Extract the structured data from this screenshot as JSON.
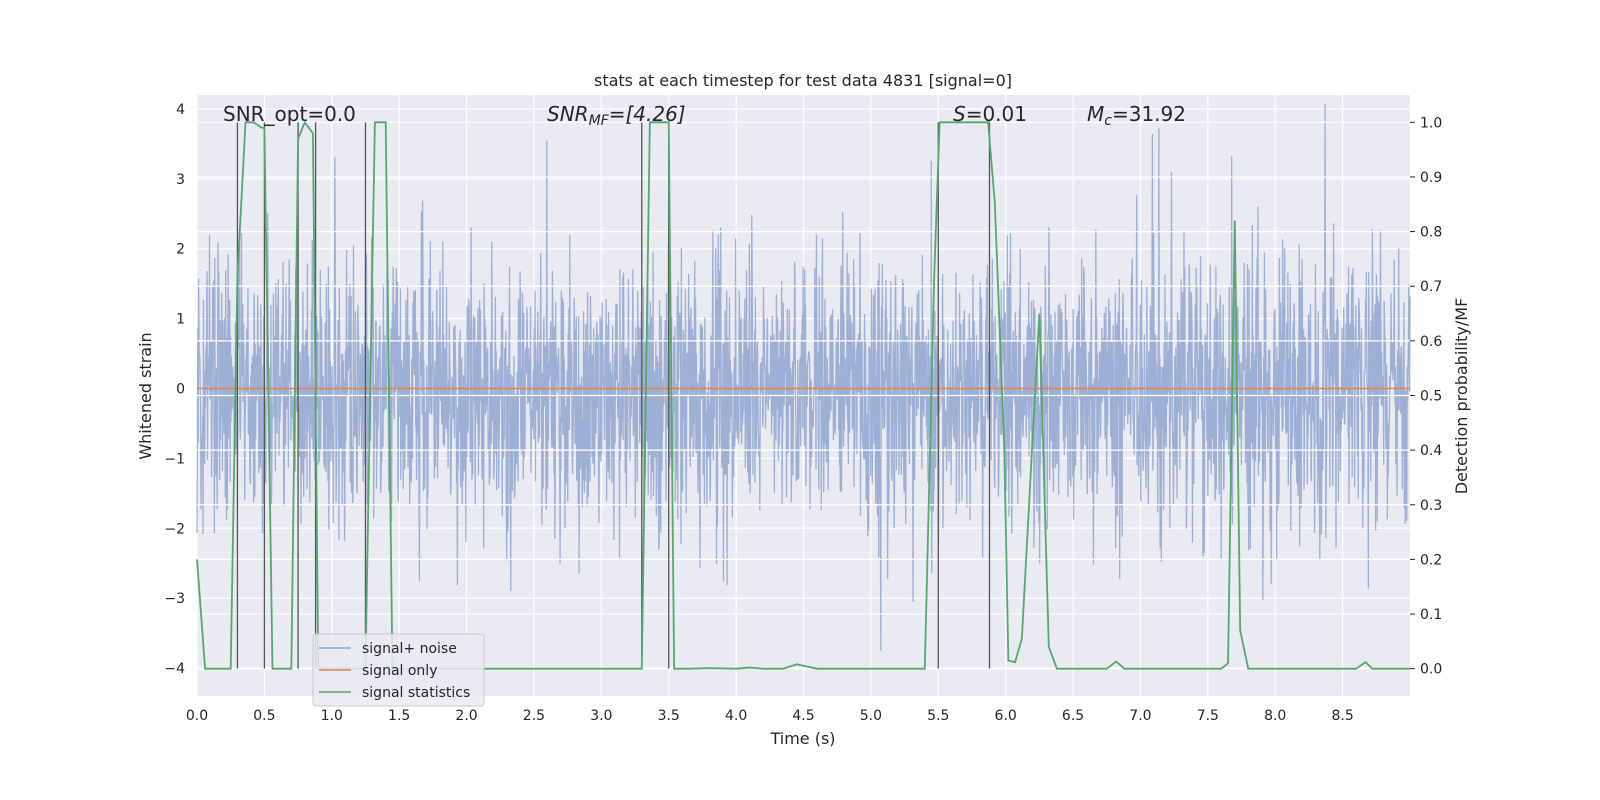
{
  "chart_data": {
    "type": "line",
    "title": "stats at each timestep for test data 4831 [signal=0]",
    "xlabel": "Time (s)",
    "ylabel_left": "Whitened strain",
    "ylabel_right": "Detection probability/MF",
    "xlim": [
      0.0,
      9.0
    ],
    "ylim_left": [
      -4.4,
      4.2
    ],
    "ylim_right": [
      -0.05,
      1.05
    ],
    "x_ticks": [
      0.0,
      0.5,
      1.0,
      1.5,
      2.0,
      2.5,
      3.0,
      3.5,
      4.0,
      4.5,
      5.0,
      5.5,
      6.0,
      6.5,
      7.0,
      7.5,
      8.0,
      8.5
    ],
    "x_tick_labels": [
      "0.0",
      "0.5",
      "1.0",
      "1.5",
      "2.0",
      "2.5",
      "3.0",
      "3.5",
      "4.0",
      "4.5",
      "5.0",
      "5.5",
      "6.0",
      "6.5",
      "7.0",
      "7.5",
      "8.0",
      "8.5"
    ],
    "y_ticks_left": [
      4,
      3,
      2,
      1,
      0,
      -1,
      -2,
      -3,
      -4
    ],
    "y_tick_labels_left": [
      "4",
      "3",
      "2",
      "1",
      "0",
      "−1",
      "−2",
      "−3",
      "−4"
    ],
    "y_ticks_right": [
      1.0,
      0.9,
      0.8,
      0.7,
      0.6,
      0.5,
      0.4,
      0.3,
      0.2,
      0.1,
      0.0
    ],
    "y_tick_labels_right": [
      "1.0",
      "0.9",
      "0.8",
      "0.7",
      "0.6",
      "0.5",
      "0.4",
      "0.3",
      "0.2",
      "0.1",
      "0.0"
    ],
    "annotations": {
      "snr_opt": "SNR_opt=0.0",
      "snr_mf_label": "SNR",
      "snr_mf_sub": "MF",
      "snr_mf_value": "=[4.26]",
      "s_label": "S",
      "s_value": "=0.01",
      "mc_label": "M",
      "mc_sub": "c",
      "mc_value": "=31.92"
    },
    "vertical_lines": [
      0.3,
      0.5,
      0.75,
      0.88,
      1.25,
      3.3,
      3.5,
      5.5,
      5.88
    ],
    "series": [
      {
        "name": "signal+ noise",
        "color": "#8fa4cf",
        "axis": "left",
        "kind": "noise",
        "dt": 0.003,
        "sigma": 1.0,
        "seed": 4831
      },
      {
        "name": "signal only",
        "color": "#dd8452",
        "axis": "left",
        "x": [
          0.0,
          9.0
        ],
        "y": [
          0.0,
          0.0
        ]
      },
      {
        "name": "signal statistics",
        "color": "#55a868",
        "axis": "right",
        "x": [
          0.0,
          0.03,
          0.06,
          0.25,
          0.3,
          0.36,
          0.42,
          0.48,
          0.5,
          0.56,
          0.7,
          0.75,
          0.8,
          0.86,
          0.9,
          1.25,
          1.3,
          1.32,
          1.36,
          1.4,
          1.45,
          3.3,
          3.36,
          3.46,
          3.5,
          3.54,
          3.58,
          3.65,
          3.8,
          4.0,
          4.1,
          4.2,
          4.35,
          4.45,
          4.6,
          5.4,
          5.47,
          5.51,
          5.57,
          5.87,
          5.92,
          5.99,
          6.02,
          6.07,
          6.12,
          6.25,
          6.32,
          6.38,
          6.75,
          6.82,
          6.88,
          7.6,
          7.65,
          7.7,
          7.74,
          7.8,
          8.6,
          8.67,
          8.72,
          9.0
        ],
        "y": [
          0.2,
          0.1,
          0.0,
          0.0,
          0.72,
          1.0,
          1.0,
          0.99,
          0.99,
          0.0,
          0.0,
          0.97,
          1.0,
          0.98,
          0.0,
          0.0,
          0.72,
          1.0,
          1.0,
          1.0,
          0.0,
          0.0,
          1.0,
          1.0,
          1.0,
          0.0,
          0.0,
          0.0,
          0.001,
          0.0,
          0.002,
          0.0,
          0.0,
          0.008,
          0.0,
          0.0,
          0.72,
          1.0,
          1.0,
          1.0,
          0.85,
          0.4,
          0.015,
          0.012,
          0.055,
          0.65,
          0.04,
          0.0,
          0.0,
          0.013,
          0.0,
          0.0,
          0.01,
          0.82,
          0.07,
          0.0,
          0.0,
          0.012,
          0.0,
          0.0
        ]
      }
    ],
    "legend": {
      "position": "lower-left",
      "entries": [
        "signal+ noise",
        "signal only",
        "signal statistics"
      ]
    },
    "grid": true
  }
}
